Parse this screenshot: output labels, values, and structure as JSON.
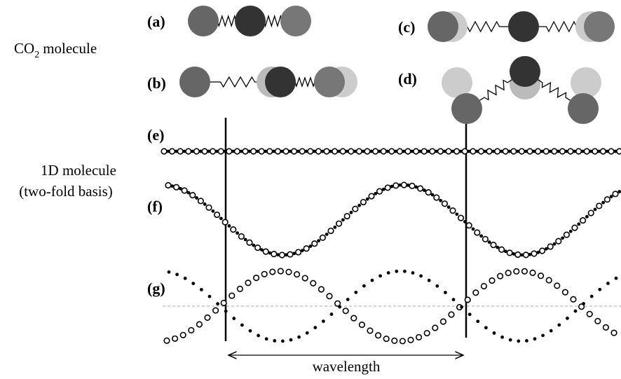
{
  "co2_label": {
    "main": "CO",
    "subscript": "2",
    "rest": "molecule"
  },
  "molecule_1d": [
    "1D molecule",
    "(two-fold basis)"
  ],
  "panels": [
    "(a)",
    "(b)",
    "(c)",
    "(d)",
    "(e)",
    "(f)",
    "(g)"
  ],
  "wavelength": "wavelength"
}
